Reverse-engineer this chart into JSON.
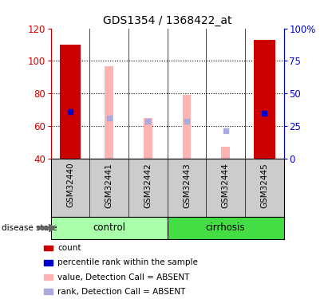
{
  "title": "GDS1354 / 1368422_at",
  "samples": [
    "GSM32440",
    "GSM32441",
    "GSM32442",
    "GSM32443",
    "GSM32444",
    "GSM32445"
  ],
  "red_bars": [
    110,
    null,
    null,
    null,
    null,
    113
  ],
  "blue_markers": [
    69,
    null,
    null,
    null,
    null,
    68
  ],
  "pink_bars": [
    null,
    97,
    65,
    79,
    47,
    null
  ],
  "lavender_markers": [
    null,
    65,
    63,
    63,
    57,
    null
  ],
  "ylim": [
    40,
    120
  ],
  "y_ticks_left": [
    40,
    60,
    80,
    100,
    120
  ],
  "y_ticks_right_vals": [
    0,
    25,
    50,
    75,
    100
  ],
  "bar_bottom": 40,
  "red_color": "#cc0000",
  "blue_color": "#0000cc",
  "pink_color": "#ffb3b3",
  "lavender_color": "#aaaadd",
  "control_color": "#aaffaa",
  "cirrhosis_color": "#44dd44",
  "label_area_bg": "#cccccc",
  "legend_items": [
    {
      "color": "#cc0000",
      "label": "count"
    },
    {
      "color": "#0000cc",
      "label": "percentile rank within the sample"
    },
    {
      "color": "#ffb3b3",
      "label": "value, Detection Call = ABSENT"
    },
    {
      "color": "#aaaadd",
      "label": "rank, Detection Call = ABSENT"
    }
  ]
}
